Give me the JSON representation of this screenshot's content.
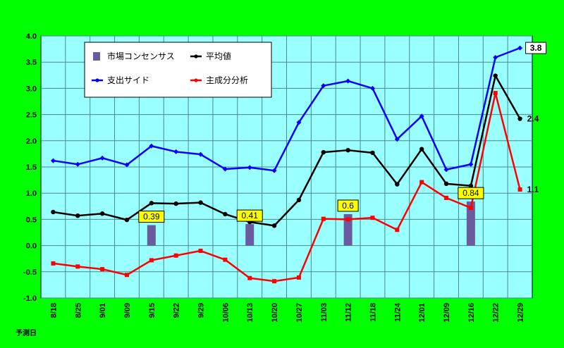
{
  "chart_data": {
    "type": "line",
    "categories": [
      "8/18",
      "8/25",
      "9/01",
      "9/09",
      "9/15",
      "9/22",
      "9/29",
      "10/06",
      "10/13",
      "10/20",
      "10/27",
      "11/03",
      "11/12",
      "11/18",
      "11/24",
      "12/01",
      "12/09",
      "12/16",
      "12/22",
      "12/29"
    ],
    "ylim": [
      -1.0,
      4.0
    ],
    "yticks": [
      "4.0",
      "3.5",
      "3.0",
      "2.5",
      "2.0",
      "1.5",
      "1.0",
      "0.5",
      "0.0",
      "-0.5",
      "-1.0"
    ],
    "xlabel": "予測日",
    "grid": true,
    "legend_position": "top-left-inside",
    "series": [
      {
        "name": "支出サイド",
        "type": "line",
        "color": "#0000ff",
        "values": [
          1.62,
          1.55,
          1.67,
          1.54,
          1.9,
          1.79,
          1.74,
          1.46,
          1.49,
          1.43,
          2.35,
          3.05,
          3.14,
          3.0,
          2.03,
          2.47,
          1.45,
          1.55,
          3.59,
          3.77
        ]
      },
      {
        "name": "平均値",
        "type": "line",
        "color": "#000000",
        "values": [
          0.64,
          0.57,
          0.61,
          0.49,
          0.81,
          0.8,
          0.82,
          0.6,
          0.45,
          0.38,
          0.87,
          1.78,
          1.82,
          1.77,
          1.17,
          1.84,
          1.18,
          1.14,
          3.24,
          2.42
        ]
      },
      {
        "name": "主成分分析",
        "type": "line",
        "color": "#ff0000",
        "values": [
          -0.34,
          -0.4,
          -0.45,
          -0.56,
          -0.28,
          -0.19,
          -0.1,
          -0.27,
          -0.62,
          -0.68,
          -0.61,
          0.51,
          0.5,
          0.53,
          0.3,
          1.21,
          0.91,
          0.72,
          2.91,
          1.07
        ]
      },
      {
        "name": "市場コンセンサス",
        "type": "bar",
        "color": "#6a5a9e",
        "values": [
          null,
          null,
          null,
          null,
          0.39,
          null,
          null,
          null,
          0.41,
          null,
          null,
          null,
          0.6,
          null,
          null,
          null,
          null,
          0.84,
          null,
          null
        ]
      }
    ],
    "callouts": [
      {
        "category": "9/15",
        "text": "0.39"
      },
      {
        "category": "10/13",
        "text": "0.41"
      },
      {
        "category": "11/12",
        "text": "0.6"
      },
      {
        "category": "12/16",
        "text": "0.84"
      }
    ],
    "end_labels": [
      {
        "series": "支出サイド",
        "text": "3.8",
        "boxed": true
      },
      {
        "series": "平均値",
        "text": "2.4",
        "boxed": false
      },
      {
        "series": "主成分分析",
        "text": "1.1",
        "boxed": false
      }
    ]
  },
  "colors": {
    "background": "#00ff00",
    "plot_area": "#99ffff",
    "grid": "#4a8a8a",
    "legend_bg": "#ffffff",
    "callout_bg": "#ffff00"
  }
}
